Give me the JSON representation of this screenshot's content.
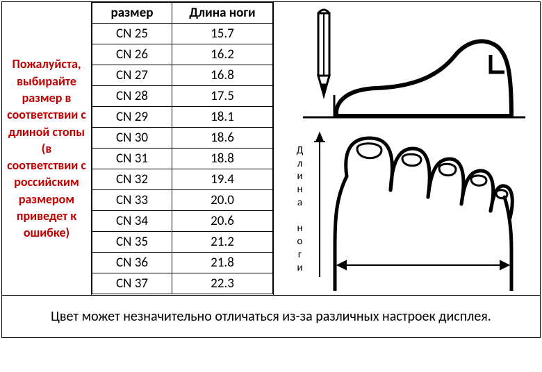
{
  "table": {
    "columns": [
      "размер",
      "Длина ноги"
    ],
    "rows": [
      [
        "CN 25",
        "15.7"
      ],
      [
        "CN 26",
        "16.2"
      ],
      [
        "CN 27",
        "16.8"
      ],
      [
        "CN 28",
        "17.5"
      ],
      [
        "CN 29",
        "18.1"
      ],
      [
        "CN 30",
        "18.6"
      ],
      [
        "CN 31",
        "18.8"
      ],
      [
        "CN 32",
        "19.4"
      ],
      [
        "CN 33",
        "20.0"
      ],
      [
        "CN 34",
        "20.6"
      ],
      [
        "CN 35",
        "21.2"
      ],
      [
        "CN 36",
        "21.8"
      ],
      [
        "CN 37",
        "22.3"
      ]
    ],
    "header_fontsize": 19,
    "cell_fontsize": 19,
    "border_color": "#000000",
    "background_color": "#ffffff"
  },
  "warning_text": "Пожалуйста, выбирайте размер в соответствии с длиной стопы (в соответствии с российским размером приведет к ошибке)",
  "warning_color": "#c00000",
  "footer_text": "Цвет может незначительно отличаться из-за различных настроек дисплея.",
  "illustration": {
    "vertical_label": "Длина ноги",
    "stroke_color": "#000000",
    "background": "#ffffff"
  }
}
